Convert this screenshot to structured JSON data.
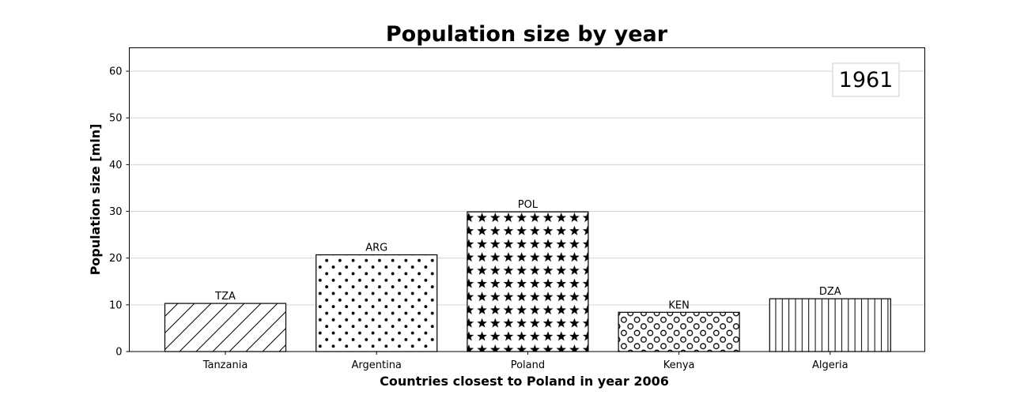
{
  "chart_data": {
    "type": "bar",
    "title": "Population size by year",
    "xlabel": "Countries closest to Poland in year 2006",
    "ylabel": "Population size [mln]",
    "categories": [
      "Tanzania",
      "Argentina",
      "Poland",
      "Kenya",
      "Algeria"
    ],
    "codes": [
      "TZA",
      "ARG",
      "POL",
      "KEN",
      "DZA"
    ],
    "values": [
      10.3,
      20.7,
      29.9,
      8.4,
      11.3
    ],
    "patterns": [
      "diagonal-hatch",
      "dots",
      "stars",
      "circles",
      "vertical-hatch"
    ],
    "ylim": [
      0,
      65
    ],
    "yticks": [
      0,
      10,
      20,
      30,
      40,
      50,
      60
    ],
    "grid": "horizontal",
    "annotation": "1961",
    "annotation_placement": "top-right"
  },
  "colors": {
    "bar_fill": "#ffffff",
    "bar_edge": "#000000",
    "grid": "#d3d3d3",
    "axis": "#000000"
  }
}
